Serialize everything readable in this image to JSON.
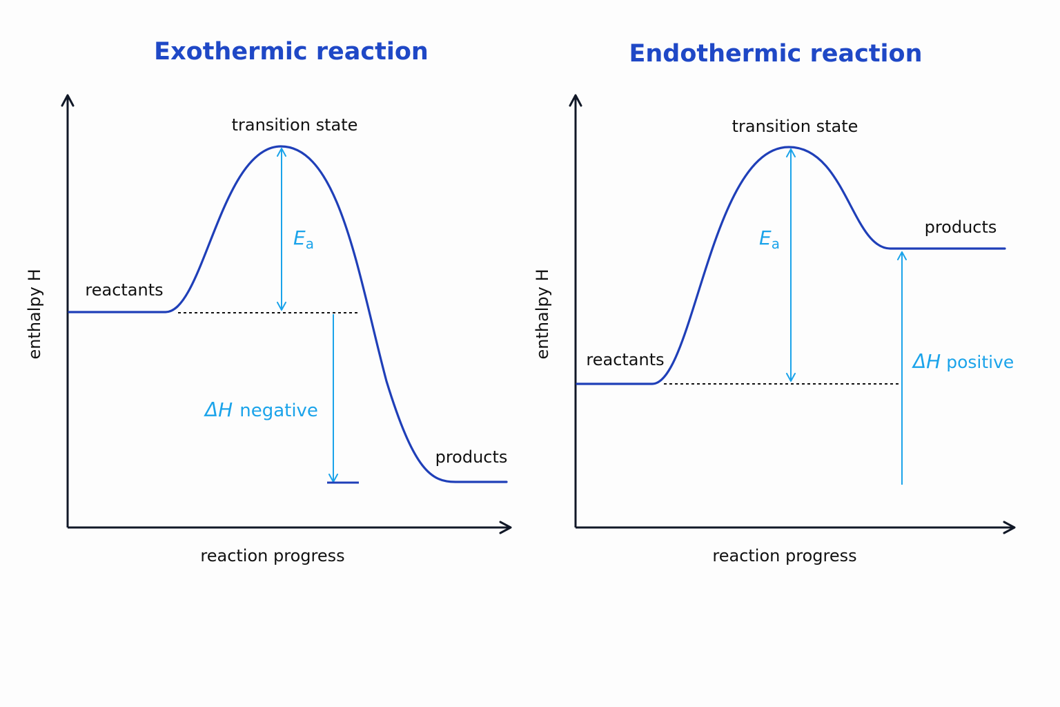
{
  "colors": {
    "title": "#1f48c6",
    "curve": "#1f3fb8",
    "axis": "#111827",
    "accent": "#1aa3ea",
    "text": "#111111",
    "background": "#fdfdfd"
  },
  "exothermic": {
    "title": "Exothermic reaction",
    "y_axis_label": "enthalpy H",
    "x_axis_label": "reaction progress",
    "transition_label": "transition state",
    "reactants_label": "reactants",
    "products_label": "products",
    "ea_symbol": "E",
    "ea_subscript": "a",
    "dh_symbol": "ΔH",
    "dh_text": "negative"
  },
  "endothermic": {
    "title": "Endothermic reaction",
    "y_axis_label": "enthalpy H",
    "x_axis_label": "reaction progress",
    "transition_label": "transition state",
    "reactants_label": "reactants",
    "products_label": "products",
    "ea_symbol": "E",
    "ea_subscript": "a",
    "dh_symbol": "ΔH",
    "dh_text": "positive"
  }
}
